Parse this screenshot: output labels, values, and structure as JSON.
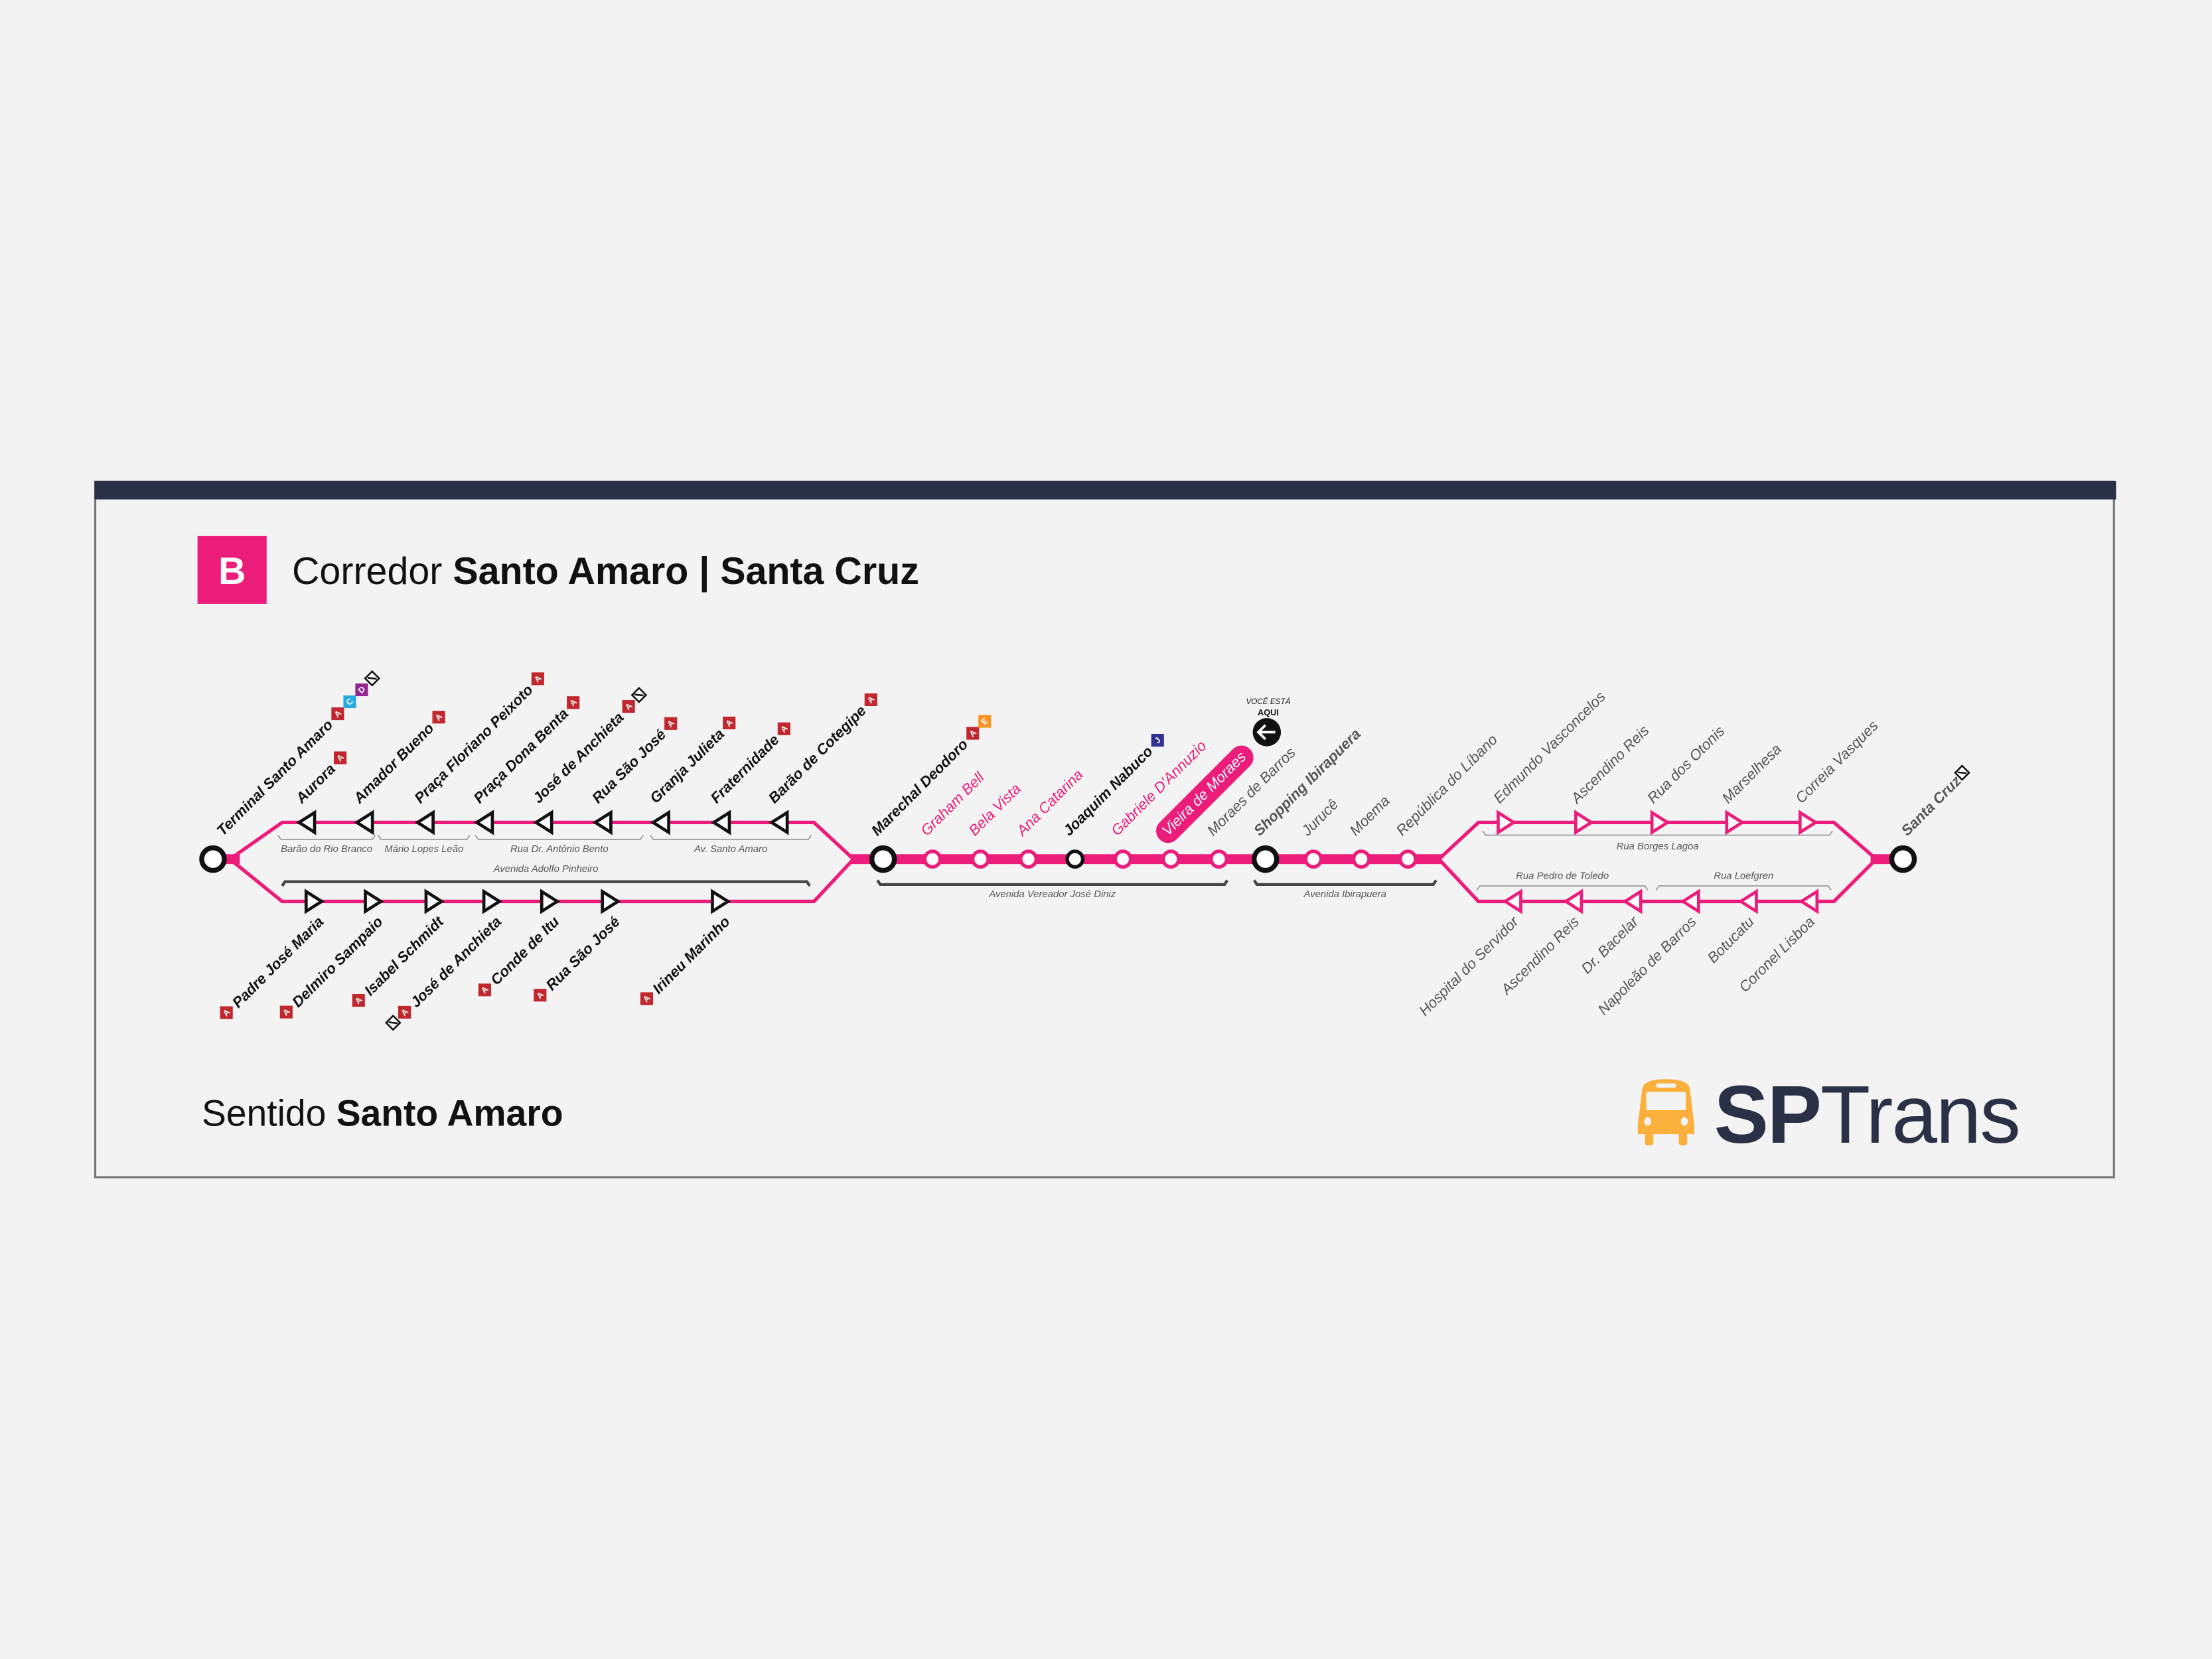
{
  "colors": {
    "line": "#ec1c7b",
    "header_bar": "#2a3045",
    "brand": "#2a3045",
    "bus": "#fbb03b",
    "badges": {
      "A": "#c1272d",
      "C": "#29abe2",
      "D": "#93278f",
      "E": "#f7931e",
      "J": "#2e3192"
    }
  },
  "header": {
    "line_letter": "B",
    "title_prefix": "Corredor",
    "title_bold": "Santo Amaro | Santa Cruz"
  },
  "footer": {
    "direction_prefix": "Sentido",
    "direction_bold": "Santo Amaro",
    "logo_bold": "SP",
    "logo_light": "Trans"
  },
  "you_are_here": {
    "line1": "VOCÊ ESTÁ",
    "line2": "AQUI",
    "icon": "arrow-left-icon"
  },
  "terminals": {
    "start": {
      "name": "Terminal Santo Amaro",
      "badges": [
        "A",
        "C",
        "D"
      ],
      "metro": true
    },
    "end": {
      "name": "Santa Cruz",
      "badges": [],
      "metro": true
    }
  },
  "upper_left": [
    {
      "name": "Aurora",
      "badges": [
        "A"
      ]
    },
    {
      "name": "Amador Bueno",
      "badges": [
        "A"
      ]
    },
    {
      "name": "Praça Floriano Peixoto",
      "badges": [
        "A"
      ]
    },
    {
      "name": "Praça Dona Benta",
      "badges": [
        "A"
      ]
    },
    {
      "name": "José de Anchieta",
      "badges": [
        "A"
      ],
      "metro": true
    },
    {
      "name": "Rua São José",
      "badges": [
        "A"
      ]
    },
    {
      "name": "Granja Julieta",
      "badges": [
        "A"
      ]
    },
    {
      "name": "Fraternidade",
      "badges": [
        "A"
      ]
    },
    {
      "name": "Barão de Cotegipe",
      "badges": [
        "A"
      ]
    }
  ],
  "lower_left": [
    {
      "name": "Padre José Maria",
      "badges": [
        "A"
      ]
    },
    {
      "name": "Delmiro Sampaio",
      "badges": [
        "A"
      ]
    },
    {
      "name": "Isabel Schmidt",
      "badges": [
        "A"
      ]
    },
    {
      "name": "José de Anchieta",
      "badges": [
        "A"
      ],
      "metro": true
    },
    {
      "name": "Conde de Itu",
      "badges": [
        "A"
      ]
    },
    {
      "name": "Rua São José",
      "badges": [
        "A"
      ]
    },
    {
      "name": "Irineu Marinho",
      "badges": [
        "A"
      ]
    }
  ],
  "trunk": [
    {
      "name": "Marechal Deodoro",
      "style": "bold",
      "badges": [
        "A",
        "E"
      ],
      "terminal": true
    },
    {
      "name": "Graham Bell",
      "style": "pink"
    },
    {
      "name": "Bela Vista",
      "style": "pink"
    },
    {
      "name": "Ana Catarina",
      "style": "pink"
    },
    {
      "name": "Joaquim Nabuco",
      "style": "bold",
      "badges": [
        "J"
      ],
      "transfer": true
    },
    {
      "name": "Gabriele D'Annuzio",
      "style": "pink"
    },
    {
      "name": "Vieira de Moraes",
      "style": "current"
    },
    {
      "name": "Moraes de Barros",
      "style": "gray"
    },
    {
      "name": "Shopping Ibirapuera",
      "style": "graybold",
      "terminal": true
    },
    {
      "name": "Jurucê",
      "style": "gray"
    },
    {
      "name": "Moema",
      "style": "gray"
    },
    {
      "name": "República do Líbano",
      "style": "gray"
    }
  ],
  "upper_right": [
    {
      "name": "Edmundo Vasconcelos"
    },
    {
      "name": "Ascendino Reis"
    },
    {
      "name": "Rua dos Otonis"
    },
    {
      "name": "Marselhesa"
    },
    {
      "name": "Correia Vasques"
    }
  ],
  "lower_right": [
    {
      "name": "Hospital do Servidor"
    },
    {
      "name": "Ascendino Reis"
    },
    {
      "name": "Dr. Bacelar"
    },
    {
      "name": "Napoleão de Barros"
    },
    {
      "name": "Botucatu"
    },
    {
      "name": "Coronel Lisboa"
    }
  ],
  "streets": {
    "barao_rio_branco": "Barão do Rio Branco",
    "mario_lopes_leao": "Mário Lopes Leão",
    "antonio_bento": "Rua Dr. Antônio Bento",
    "av_santo_amaro": "Av. Santo Amaro",
    "adolfo_pinheiro": "Avenida Adolfo Pinheiro",
    "vereador_jose_diniz": "Avenida Vereador José Diniz",
    "ibirapuera": "Avenida Ibirapuera",
    "borges_lagoa": "Rua Borges Lagoa",
    "pedro_de_toledo": "Rua Pedro de Toledo",
    "loefgren": "Rua Loefgren"
  }
}
